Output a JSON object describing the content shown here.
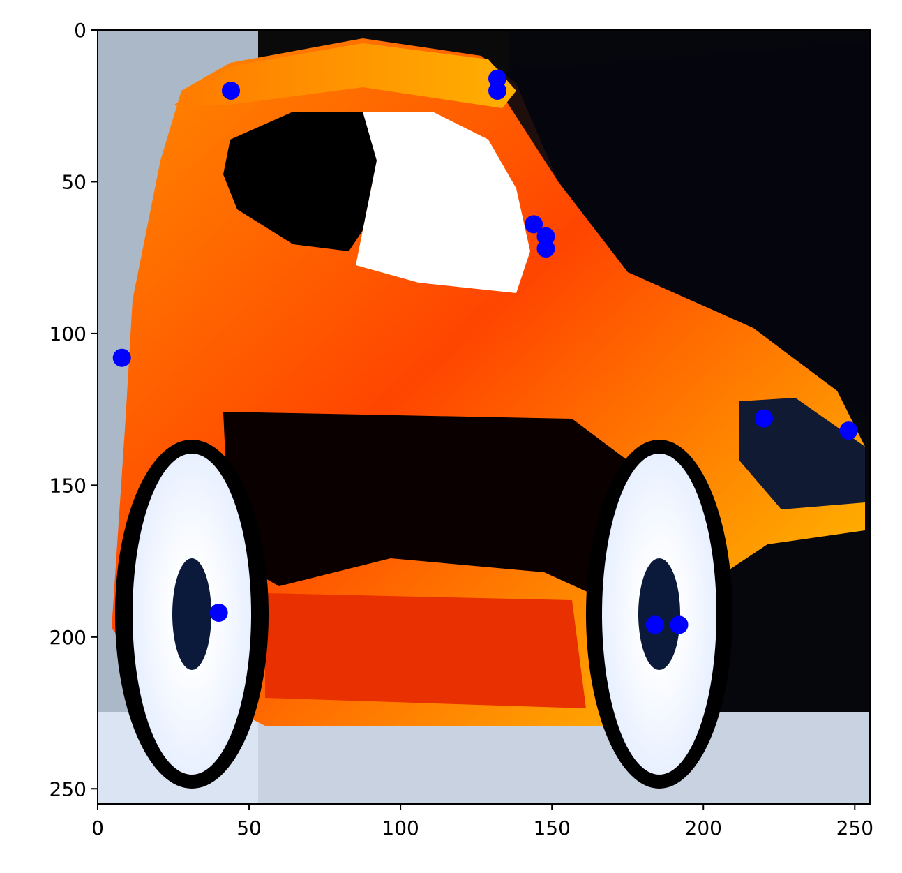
{
  "chart_data": {
    "type": "scatter",
    "title": "",
    "xlabel": "",
    "ylabel": "",
    "xlim": [
      0,
      255
    ],
    "ylim": [
      255,
      0
    ],
    "y_inverted": true,
    "grid": false,
    "legend": "none",
    "background_image": "stylized image of a car in false-color orange, yellow and red hues with white wheels on a dark background",
    "x_ticks": [
      0,
      50,
      100,
      150,
      200,
      250
    ],
    "x_tick_labels": [
      "0",
      "50",
      "100",
      "150",
      "200",
      "250"
    ],
    "y_ticks": [
      0,
      50,
      100,
      150,
      200,
      250
    ],
    "y_tick_labels": [
      "0",
      "50",
      "100",
      "150",
      "200",
      "250"
    ],
    "series": [
      {
        "color": "#0000ff",
        "marker": "circle",
        "points": [
          {
            "x": 44,
            "y": 20
          },
          {
            "x": 132,
            "y": 16
          },
          {
            "x": 132,
            "y": 20
          },
          {
            "x": 144,
            "y": 64
          },
          {
            "x": 148,
            "y": 68
          },
          {
            "x": 148,
            "y": 72
          },
          {
            "x": 8,
            "y": 108
          },
          {
            "x": 220,
            "y": 128
          },
          {
            "x": 248,
            "y": 132
          },
          {
            "x": 40,
            "y": 192
          },
          {
            "x": 184,
            "y": 196
          },
          {
            "x": 192,
            "y": 196
          }
        ]
      }
    ]
  }
}
